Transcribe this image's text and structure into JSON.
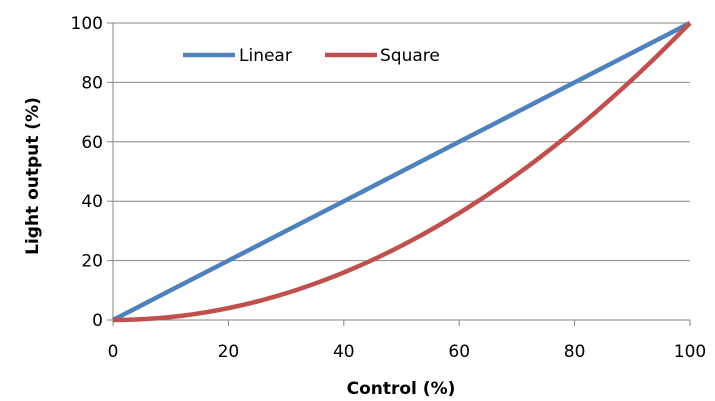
{
  "chart_data": {
    "type": "line",
    "xlabel": "Control (%)",
    "ylabel": "Light output (%)",
    "xlim": [
      0,
      100
    ],
    "ylim": [
      0,
      100
    ],
    "x_ticks": [
      "0",
      "20",
      "40",
      "60",
      "80",
      "100"
    ],
    "y_ticks": [
      "0",
      "20",
      "40",
      "60",
      "80",
      "100"
    ],
    "grid": "horizontal",
    "legend_position": "top-left",
    "x": [
      0,
      10,
      20,
      30,
      40,
      50,
      60,
      70,
      80,
      90,
      100
    ],
    "series": [
      {
        "name": "Linear",
        "color": "#4F81BD",
        "values": [
          0,
          10,
          20,
          30,
          40,
          50,
          60,
          70,
          80,
          90,
          100
        ]
      },
      {
        "name": "Square",
        "color": "#C0504D",
        "values": [
          0,
          1,
          4,
          9,
          16,
          25,
          36,
          49,
          64,
          81,
          100
        ]
      }
    ]
  }
}
